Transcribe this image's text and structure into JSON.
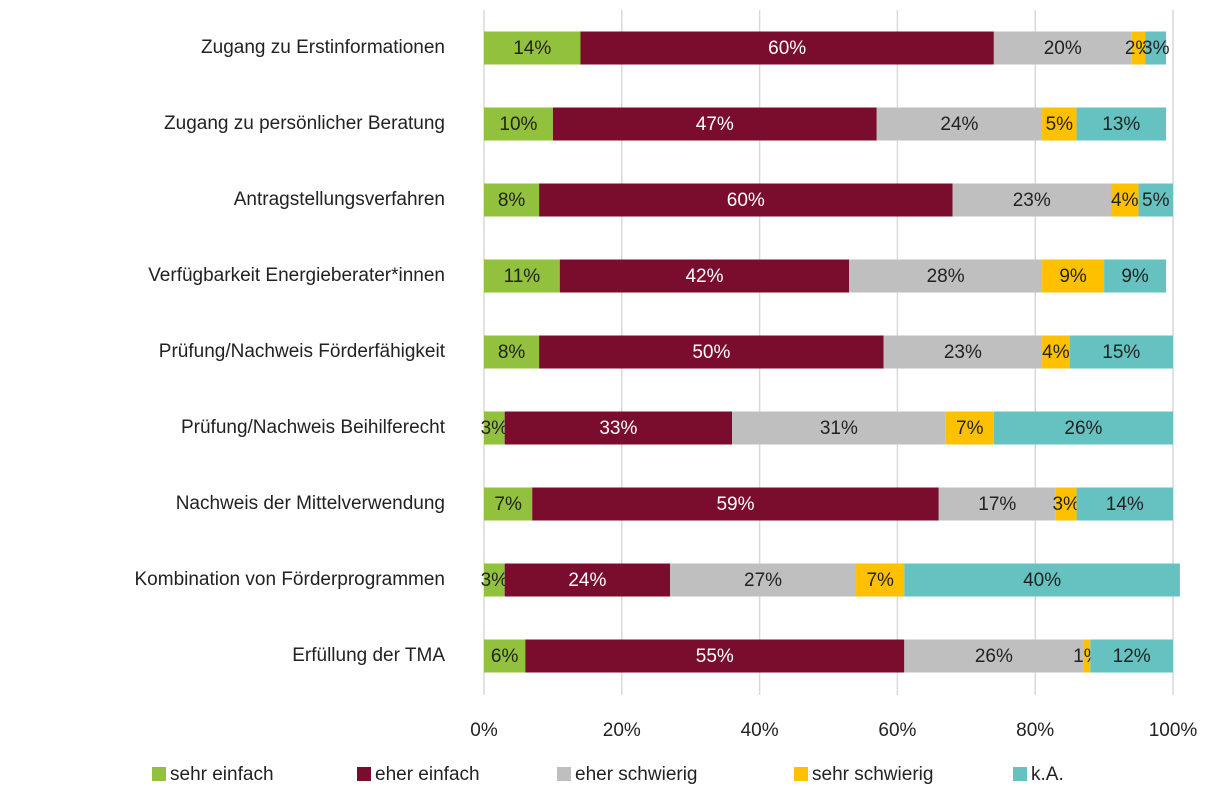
{
  "chart_data": {
    "type": "bar",
    "orientation": "horizontal",
    "stacked": true,
    "categories": [
      "Zugang zu Erstinformationen",
      "Zugang zu persönlicher Beratung",
      "Antragstellungsverfahren",
      "Verfügbarkeit Energieberater*innen",
      "Prüfung/Nachweis Förderfähigkeit",
      "Prüfung/Nachweis Beihilferecht",
      "Nachweis der Mittelverwendung",
      "Kombination von Förderprogrammen",
      "Erfüllung der TMA"
    ],
    "series": [
      {
        "name": "sehr einfach",
        "color": "#92c13e",
        "values": [
          14,
          10,
          8,
          11,
          8,
          3,
          7,
          3,
          6
        ],
        "value_labels": [
          "14%",
          "10%",
          "8%",
          "11%",
          "8%",
          "3%",
          "7%",
          "3%",
          "6%"
        ]
      },
      {
        "name": "eher einfach",
        "color": "#7a0c2e",
        "values": [
          60,
          47,
          60,
          42,
          50,
          33,
          59,
          24,
          55
        ],
        "value_labels": [
          "60%",
          "47%",
          "60%",
          "42%",
          "50%",
          "33%",
          "59%",
          "24%",
          "55%"
        ]
      },
      {
        "name": "eher schwierig",
        "color": "#bfbfbf",
        "values": [
          20,
          24,
          23,
          28,
          23,
          31,
          17,
          27,
          26
        ],
        "value_labels": [
          "20%",
          "24%",
          "23%",
          "28%",
          "23%",
          "31%",
          "17%",
          "27%",
          "26%"
        ]
      },
      {
        "name": "sehr schwierig",
        "color": "#ffc000",
        "values": [
          2,
          5,
          4,
          9,
          4,
          7,
          3,
          7,
          1
        ],
        "value_labels": [
          "2%",
          "5%",
          "4%",
          "9%",
          "4%",
          "7%",
          "3%",
          "7%",
          "1%"
        ]
      },
      {
        "name": "k.A.",
        "color": "#66c2c0",
        "values": [
          3,
          13,
          5,
          9,
          15,
          26,
          14,
          40,
          12
        ],
        "value_labels": [
          "3%",
          "13%",
          "5%",
          "9%",
          "15%",
          "26%",
          "14%",
          "40%",
          "12%"
        ]
      }
    ],
    "xlim": [
      0,
      100
    ],
    "xticks": [
      {
        "value": 0,
        "label": "0%"
      },
      {
        "value": 20,
        "label": "20%"
      },
      {
        "value": 40,
        "label": "40%"
      },
      {
        "value": 60,
        "label": "60%"
      },
      {
        "value": 80,
        "label": "80%"
      },
      {
        "value": 100,
        "label": "100%"
      }
    ],
    "grid": true,
    "legend": "bottom"
  }
}
